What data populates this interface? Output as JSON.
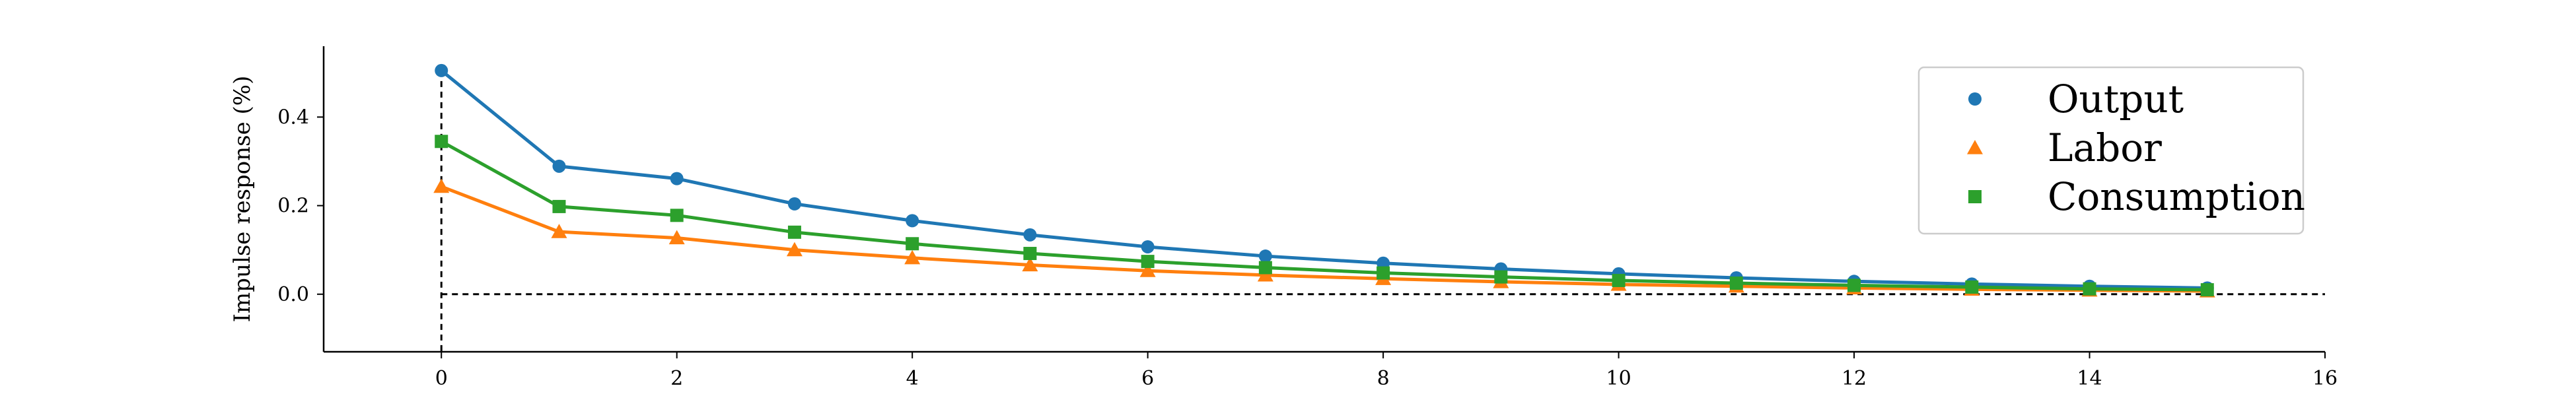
{
  "chart_data": {
    "type": "line",
    "title": "",
    "xlabel": "",
    "ylabel": "Impulse response (%)",
    "xlim": [
      -1,
      16
    ],
    "ylim": [
      -0.13,
      0.56
    ],
    "xticks": [
      0,
      2,
      4,
      6,
      8,
      10,
      12,
      14,
      16
    ],
    "xtick_labels": [
      "0",
      "2",
      "4",
      "6",
      "8",
      "10",
      "12",
      "14",
      "16"
    ],
    "yticks": [
      0.0,
      0.2,
      0.4
    ],
    "ytick_labels": [
      "0.0",
      "0.2",
      "0.4"
    ],
    "grid": false,
    "legend_position": "top-right",
    "reference_lines": {
      "horizontal_y": 0.0,
      "vertical_x": 0
    },
    "x": [
      0,
      1,
      2,
      3,
      4,
      5,
      6,
      7,
      8,
      9,
      10,
      11,
      12,
      13,
      14,
      15
    ],
    "series": [
      {
        "name": "Output",
        "marker": "circle",
        "color": "#1f77b4",
        "values": [
          0.505,
          0.289,
          0.261,
          0.204,
          0.166,
          0.134,
          0.107,
          0.086,
          0.07,
          0.057,
          0.046,
          0.037,
          0.029,
          0.023,
          0.018,
          0.014
        ]
      },
      {
        "name": "Labor",
        "marker": "triangle",
        "color": "#ff7f0e",
        "values": [
          0.243,
          0.141,
          0.127,
          0.1,
          0.082,
          0.066,
          0.053,
          0.043,
          0.035,
          0.028,
          0.022,
          0.018,
          0.014,
          0.011,
          0.009,
          0.007
        ]
      },
      {
        "name": "Consumption",
        "marker": "square",
        "color": "#2ca02c",
        "values": [
          0.345,
          0.198,
          0.178,
          0.14,
          0.114,
          0.092,
          0.074,
          0.06,
          0.048,
          0.039,
          0.031,
          0.025,
          0.02,
          0.016,
          0.012,
          0.01
        ]
      }
    ]
  }
}
